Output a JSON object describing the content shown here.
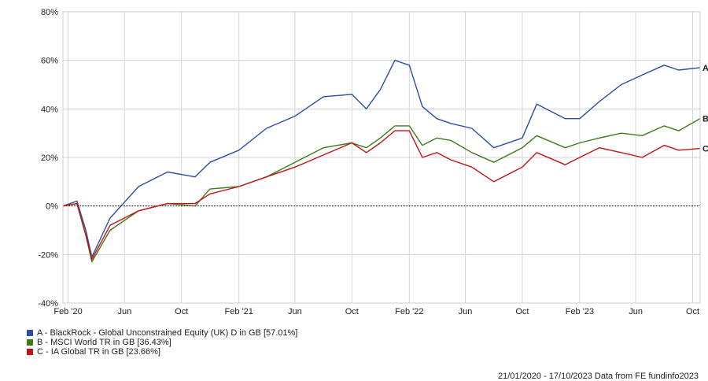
{
  "chart_data": {
    "type": "line",
    "title": "",
    "xlabel": "",
    "ylabel": "",
    "x_ticks": [
      "Feb '20",
      "Jun",
      "Oct",
      "Feb '21",
      "Jun",
      "Oct",
      "Feb '22",
      "Jun",
      "Oct",
      "Feb '23",
      "Jun",
      "Oct"
    ],
    "y_ticks": [
      "80%",
      "60%",
      "40%",
      "20%",
      "0%",
      "-20%",
      "-40%"
    ],
    "ylim": [
      -40,
      80
    ],
    "grid": true,
    "legend_position": "bottom-left",
    "x": [
      "2020-01-21",
      "2020-02-20",
      "2020-03-10",
      "2020-03-23",
      "2020-05-01",
      "2020-07-01",
      "2020-09-01",
      "2020-10-30",
      "2020-12-01",
      "2021-02-01",
      "2021-04-01",
      "2021-06-01",
      "2021-08-01",
      "2021-10-01",
      "2021-11-01",
      "2021-12-01",
      "2022-01-01",
      "2022-02-01",
      "2022-03-01",
      "2022-04-01",
      "2022-05-01",
      "2022-06-15",
      "2022-08-01",
      "2022-10-01",
      "2022-11-01",
      "2023-01-01",
      "2023-02-01",
      "2023-03-15",
      "2023-05-01",
      "2023-06-15",
      "2023-08-01",
      "2023-09-01",
      "2023-10-17"
    ],
    "series": [
      {
        "name": "A - BlackRock - Global Unconstrained Equity (UK) D in GB [57.01%]",
        "label": "A",
        "color": "#2a4fa0",
        "values": [
          0,
          2,
          -10,
          -21,
          -5,
          8,
          14,
          12,
          18,
          23,
          32,
          37,
          45,
          46,
          40,
          48,
          60,
          58,
          41,
          36,
          34,
          32,
          24,
          28,
          42,
          36,
          36,
          43,
          50,
          54,
          58,
          56,
          57
        ]
      },
      {
        "name": "B - MSCI World TR in GB [36.43%]",
        "label": "B",
        "color": "#3f7a1a",
        "values": [
          0,
          1,
          -12,
          -23,
          -10,
          -2,
          1,
          0,
          7,
          8,
          12,
          18,
          24,
          26,
          24,
          28,
          33,
          33,
          25,
          28,
          27,
          22,
          18,
          24,
          29,
          24,
          26,
          28,
          30,
          29,
          33,
          31,
          36
        ]
      },
      {
        "name": "C - IA Global TR in GB [23.66%]",
        "label": "C",
        "color": "#c01414",
        "values": [
          0,
          1,
          -12,
          -22,
          -8,
          -2,
          1,
          1,
          5,
          8,
          12,
          16,
          21,
          26,
          22,
          26,
          31,
          31,
          20,
          22,
          19,
          16,
          10,
          16,
          22,
          17,
          20,
          24,
          22,
          20,
          25,
          23,
          23.7
        ]
      }
    ]
  },
  "legend_items": [
    "A - BlackRock - Global Unconstrained Equity (UK) D in GB [57.01%]",
    "B - MSCI World TR in GB [36.43%]",
    "C - IA Global TR in GB [23.66%]"
  ],
  "footer_text": "21/01/2020 - 17/10/2023 Data from FE fundinfo2023"
}
